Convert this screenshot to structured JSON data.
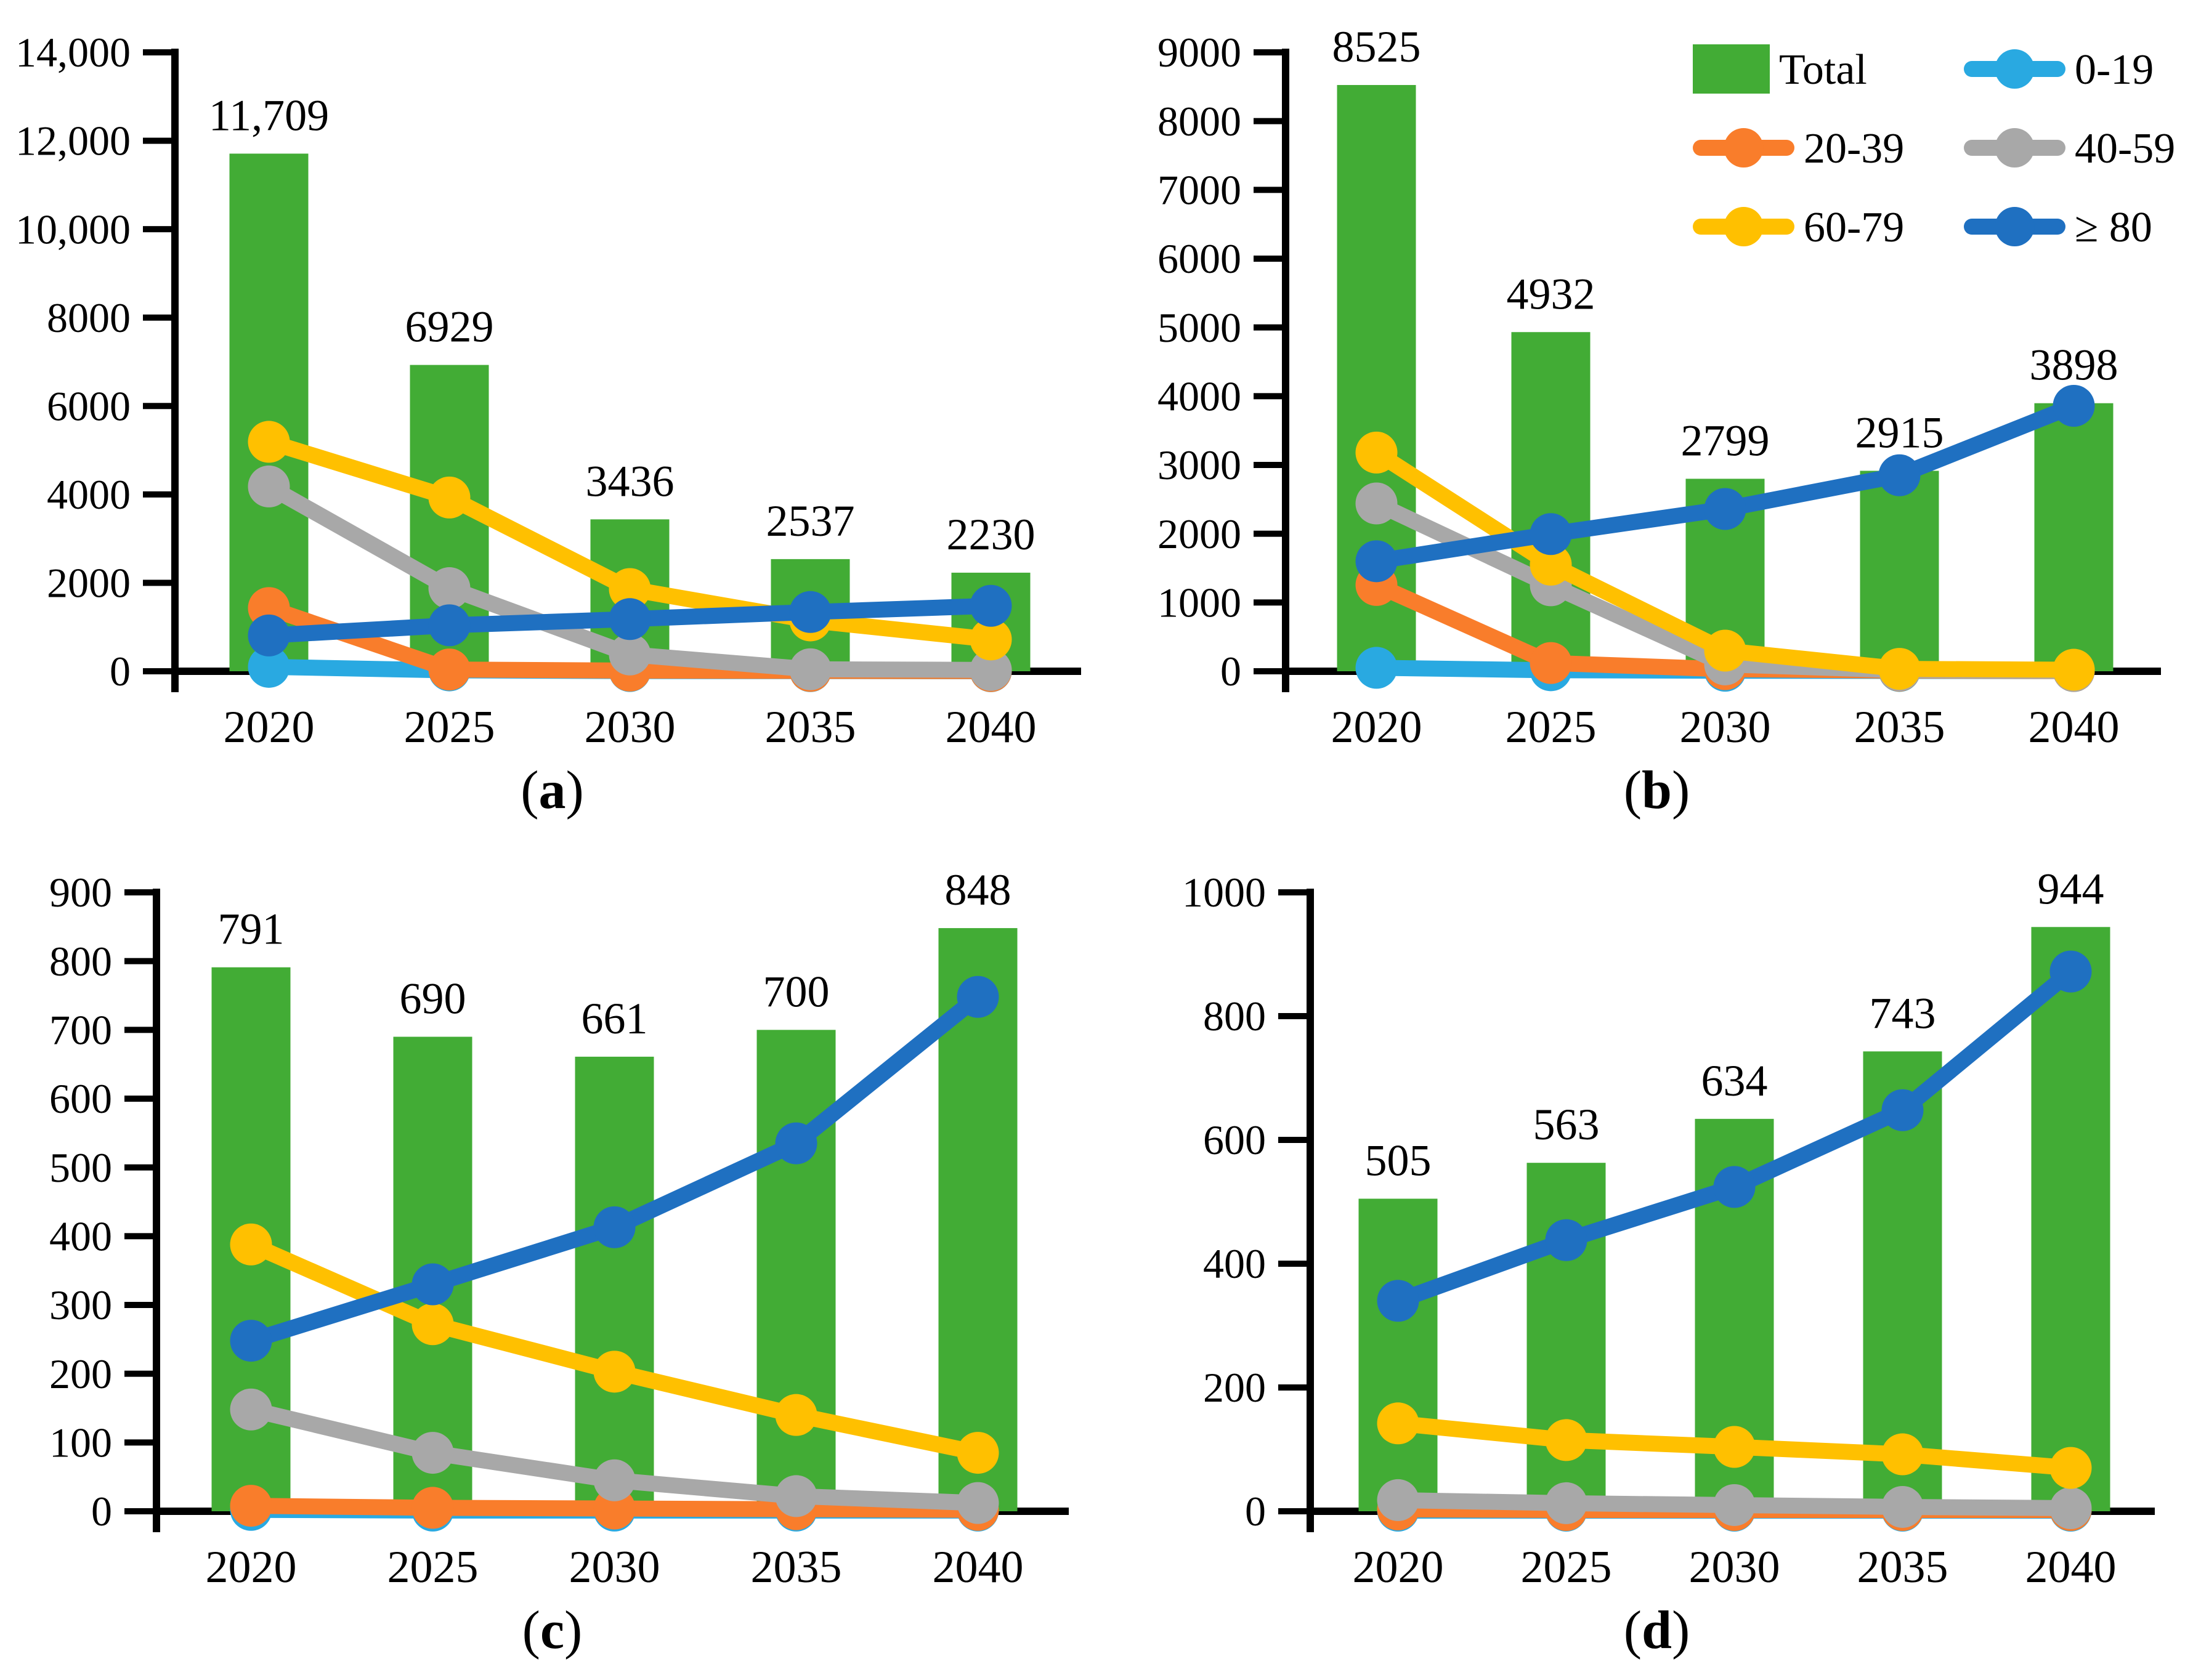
{
  "figure": {
    "caption_open": "(",
    "caption_close": ")"
  },
  "legend": {
    "location": "top-right of panel b",
    "items": [
      {
        "label": "Total",
        "type": "bar",
        "color": "#42AC35"
      },
      {
        "label": "0-19",
        "type": "line",
        "color": "#29A9E1"
      },
      {
        "label": "20-39",
        "type": "line",
        "color": "#F97D2B"
      },
      {
        "label": "40-59",
        "type": "line",
        "color": "#A8A8A8"
      },
      {
        "label": "60-79",
        "type": "line",
        "color": "#FFC000"
      },
      {
        "label": "≥ 80",
        "type": "line",
        "color": "#1F70C1"
      }
    ]
  },
  "chart_data": [
    {
      "id": "a",
      "caption_letter": "a",
      "type": "bar+line combo",
      "categories": [
        "2020",
        "2025",
        "2030",
        "2035",
        "2040"
      ],
      "ylim": [
        0,
        14000
      ],
      "ytick_step": 2000,
      "ytick_labels": [
        "0",
        "2000",
        "4000",
        "6000",
        "8000",
        "10,000",
        "12,000",
        "14,000"
      ],
      "grid": false,
      "legend_shown": false,
      "bar_series": {
        "name": "Total",
        "color": "#42AC35",
        "values": [
          11709,
          6929,
          3436,
          2537,
          2230
        ],
        "labels": [
          "11,709",
          "6929",
          "3436",
          "2537",
          "2230"
        ]
      },
      "line_series": [
        {
          "name": "0-19",
          "color": "#29A9E1",
          "values": [
            100,
            20,
            5,
            3,
            2
          ]
        },
        {
          "name": "20-39",
          "color": "#F97D2B",
          "values": [
            1430,
            40,
            15,
            8,
            5
          ]
        },
        {
          "name": "40-59",
          "color": "#A8A8A8",
          "values": [
            4180,
            1880,
            380,
            45,
            30
          ]
        },
        {
          "name": "60-79",
          "color": "#FFC000",
          "values": [
            5190,
            3930,
            1860,
            1150,
            720
          ]
        },
        {
          "name": "≥ 80",
          "color": "#1F70C1",
          "values": [
            810,
            1040,
            1180,
            1340,
            1480
          ]
        }
      ]
    },
    {
      "id": "b",
      "caption_letter": "b",
      "type": "bar+line combo",
      "categories": [
        "2020",
        "2025",
        "2030",
        "2035",
        "2040"
      ],
      "ylim": [
        0,
        9000
      ],
      "ytick_step": 1000,
      "ytick_labels": [
        "0",
        "1000",
        "2000",
        "3000",
        "4000",
        "5000",
        "6000",
        "7000",
        "8000",
        "9000"
      ],
      "grid": false,
      "legend_shown": true,
      "bar_series": {
        "name": "Total",
        "color": "#42AC35",
        "values": [
          8525,
          4932,
          2799,
          2915,
          3898
        ],
        "labels": [
          "8525",
          "4932",
          "2799",
          "2915",
          "3898"
        ]
      },
      "line_series": [
        {
          "name": "0-19",
          "color": "#29A9E1",
          "values": [
            50,
            15,
            8,
            5,
            3
          ]
        },
        {
          "name": "20-39",
          "color": "#F97D2B",
          "values": [
            1255,
            120,
            30,
            10,
            5
          ]
        },
        {
          "name": "40-59",
          "color": "#A8A8A8",
          "values": [
            2440,
            1250,
            100,
            15,
            8
          ]
        },
        {
          "name": "60-79",
          "color": "#FFC000",
          "values": [
            3180,
            1550,
            300,
            35,
            22
          ]
        },
        {
          "name": "≥ 80",
          "color": "#1F70C1",
          "values": [
            1600,
            1995,
            2360,
            2850,
            3860
          ]
        }
      ]
    },
    {
      "id": "c",
      "caption_letter": "c",
      "type": "bar+line combo",
      "categories": [
        "2020",
        "2025",
        "2030",
        "2035",
        "2040"
      ],
      "ylim": [
        0,
        900
      ],
      "ytick_step": 100,
      "ytick_labels": [
        "0",
        "100",
        "200",
        "300",
        "400",
        "500",
        "600",
        "700",
        "800",
        "900"
      ],
      "grid": false,
      "legend_shown": false,
      "bar_series": {
        "name": "Total",
        "color": "#42AC35",
        "values": [
          791,
          690,
          661,
          700,
          848
        ],
        "labels": [
          "791",
          "690",
          "661",
          "700",
          "848"
        ]
      },
      "line_series": [
        {
          "name": "0-19",
          "color": "#29A9E1",
          "values": [
            2,
            1,
            1,
            1,
            1
          ]
        },
        {
          "name": "20-39",
          "color": "#F97D2B",
          "values": [
            8,
            5,
            4,
            3,
            2
          ]
        },
        {
          "name": "40-59",
          "color": "#A8A8A8",
          "values": [
            148,
            85,
            45,
            22,
            12
          ]
        },
        {
          "name": "60-79",
          "color": "#FFC000",
          "values": [
            388,
            272,
            203,
            140,
            85
          ]
        },
        {
          "name": "≥ 80",
          "color": "#1F70C1",
          "values": [
            248,
            330,
            413,
            535,
            748
          ]
        }
      ]
    },
    {
      "id": "d",
      "caption_letter": "d",
      "type": "bar+line combo",
      "categories": [
        "2020",
        "2025",
        "2030",
        "2035",
        "2040"
      ],
      "ylim": [
        0,
        1000
      ],
      "ytick_step": 200,
      "ytick_labels": [
        "0",
        "200",
        "400",
        "600",
        "800",
        "1000"
      ],
      "grid": false,
      "legend_shown": false,
      "bar_series": {
        "name": "Total",
        "color": "#42AC35",
        "values": [
          505,
          563,
          634,
          743,
          944
        ],
        "labels": [
          "505",
          "563",
          "634",
          "743",
          "944"
        ]
      },
      "line_series": [
        {
          "name": "0-19",
          "color": "#29A9E1",
          "values": [
            1,
            1,
            1,
            1,
            1
          ]
        },
        {
          "name": "20-39",
          "color": "#F97D2B",
          "values": [
            3,
            2,
            2,
            2,
            2
          ]
        },
        {
          "name": "40-59",
          "color": "#A8A8A8",
          "values": [
            18,
            13,
            10,
            7,
            5
          ]
        },
        {
          "name": "60-79",
          "color": "#FFC000",
          "values": [
            142,
            115,
            104,
            92,
            70
          ]
        },
        {
          "name": "≥ 80",
          "color": "#1F70C1",
          "values": [
            340,
            438,
            524,
            648,
            872
          ]
        }
      ]
    }
  ]
}
